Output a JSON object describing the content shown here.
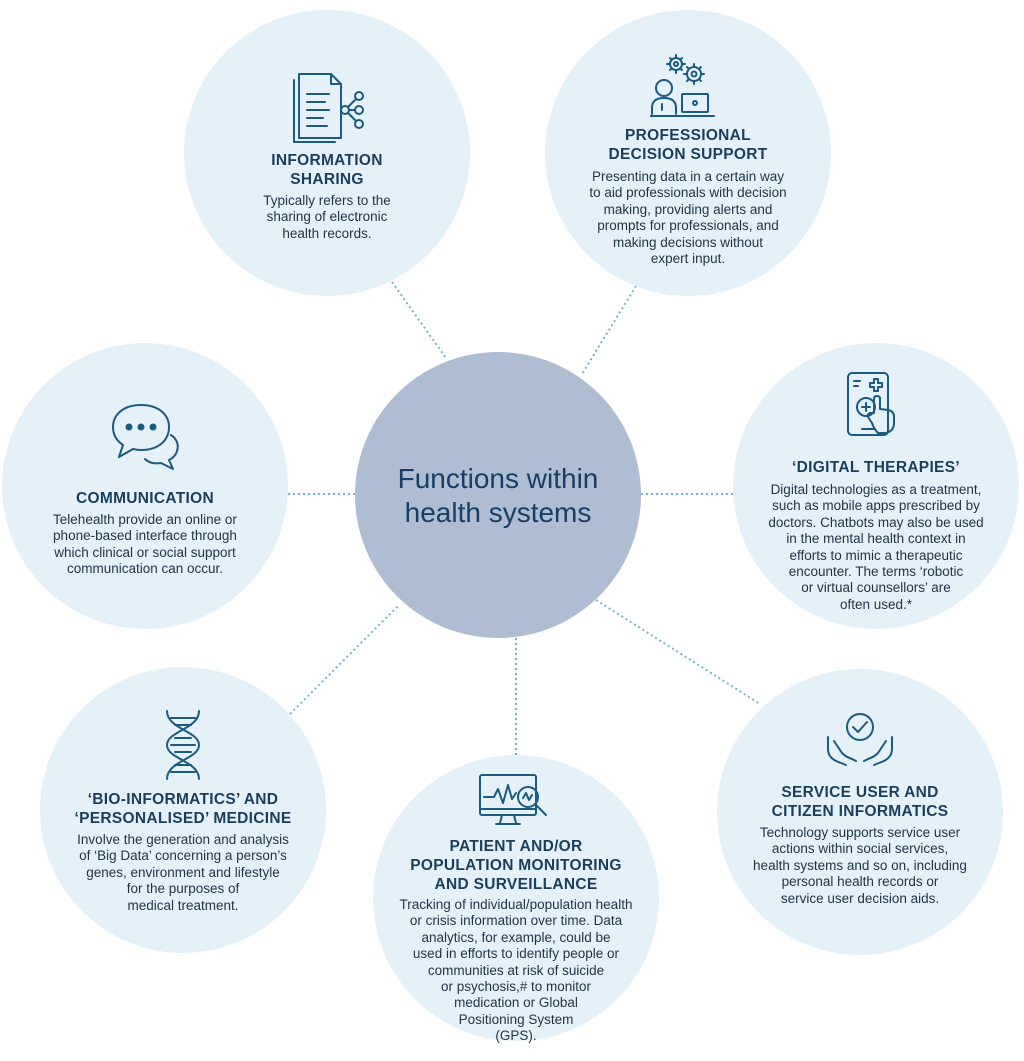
{
  "center": {
    "title": "Functions within\nhealth systems"
  },
  "nodes": {
    "information_sharing": {
      "icon": "document-share-icon",
      "title": "INFORMATION\nSHARING",
      "description": "Typically refers to the\nsharing of electronic\nhealth records."
    },
    "decision_support": {
      "icon": "professional-computer-gears-icon",
      "title": "PROFESSIONAL\nDECISION SUPPORT",
      "description": "Presenting data in a certain way\nto aid professionals with decision\nmaking, providing alerts and\nprompts for professionals, and\nmaking decisions without\nexpert input."
    },
    "communication": {
      "icon": "chat-bubbles-icon",
      "title": "COMMUNICATION",
      "description": "Telehealth provide an online or\nphone-based interface through\nwhich clinical or social support\ncommunication can occur."
    },
    "digital_therapies": {
      "icon": "phone-medical-tap-icon",
      "title": "‘DIGITAL THERAPIES’",
      "description": "Digital technologies as a treatment,\nsuch as mobile apps prescribed by\ndoctors. Chatbots may also be used\nin the mental health context in\nefforts to mimic a therapeutic\nencounter. The terms ‘robotic\nor virtual counsellors’ are\noften used.*"
    },
    "bioinformatics": {
      "icon": "dna-icon",
      "title": "‘BIO-INFORMATICS’ AND\n‘PERSONALISED’ MEDICINE",
      "description": "Involve the generation and analysis\nof ‘Big Data’ concerning a person’s\ngenes, environment and lifestyle\nfor the purposes of\nmedical treatment."
    },
    "monitoring": {
      "icon": "monitor-analytics-icon",
      "title": "PATIENT AND/OR\nPOPULATION MONITORING\nAND SURVEILLANCE",
      "description": "Tracking of individual/population health\nor crisis information over time. Data\nanalytics, for example, could be\nused in efforts to identify people or\ncommunities at risk of suicide\nor psychosis,# to monitor\nmedication or Global\nPositioning System\n(GPS)."
    },
    "service_user": {
      "icon": "hands-check-icon",
      "title": "SERVICE USER AND\nCITIZEN INFORMATICS",
      "description": "Technology supports service user\nactions within social services,\nhealth systems and so on, including\npersonal health records or\nservice user decision aids."
    }
  },
  "colors": {
    "circle_fill": "#e4f1f8",
    "center_fill": "#aebdd2",
    "title_text": "#1a3e5c",
    "connector": "#6fb3d6",
    "icon_stroke": "#1c5a7e"
  }
}
